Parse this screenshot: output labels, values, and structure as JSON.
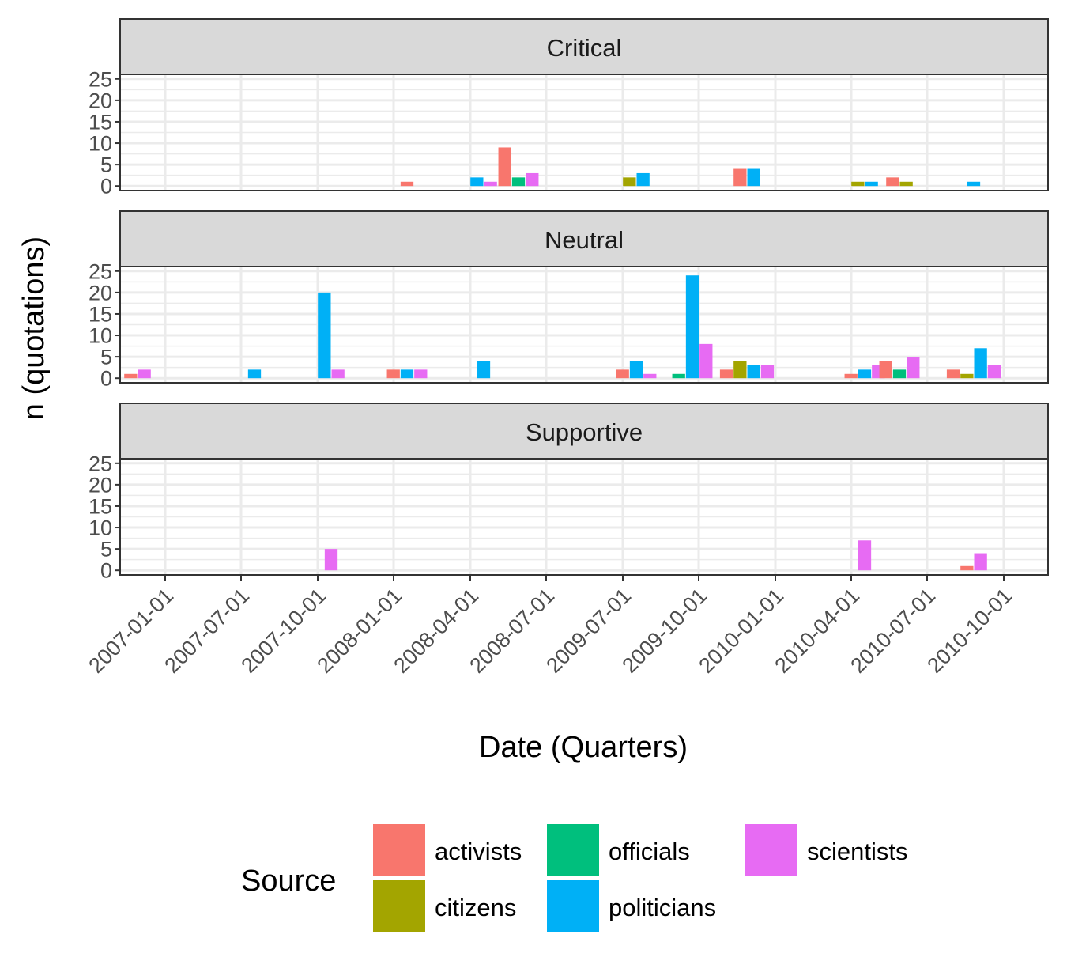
{
  "chart_data": {
    "type": "bar",
    "facet_by": "stance",
    "xlabel": "Date (Quarters)",
    "ylabel": "n (quotations)",
    "ylim": [
      0,
      25
    ],
    "yticks": [
      0,
      5,
      10,
      15,
      20,
      25
    ],
    "x_tick_labels": [
      "2007-01-01",
      "2007-07-01",
      "2007-10-01",
      "2008-01-01",
      "2008-04-01",
      "2008-07-01",
      "2009-07-01",
      "2009-10-01",
      "2010-01-01",
      "2010-04-01",
      "2010-07-01",
      "2010-10-01"
    ],
    "grid": true,
    "legend_position": "bottom",
    "legend": {
      "title": "Source",
      "entries": [
        {
          "name": "activists",
          "color": "#F8766D"
        },
        {
          "name": "citizens",
          "color": "#A3A500"
        },
        {
          "name": "officials",
          "color": "#00BF7D"
        },
        {
          "name": "politicians",
          "color": "#00B0F6"
        },
        {
          "name": "scientists",
          "color": "#E76BF3"
        }
      ]
    },
    "panels": [
      {
        "title": "Critical",
        "bars": [
          {
            "date": "2008-01-01",
            "source": "activists",
            "value": 1
          },
          {
            "date": "2008-04-01",
            "source": "politicians",
            "value": 2
          },
          {
            "date": "2008-04-01",
            "source": "scientists",
            "value": 1
          },
          {
            "date": "2008-07-01",
            "source": "activists",
            "value": 9
          },
          {
            "date": "2008-07-01",
            "source": "officials",
            "value": 2
          },
          {
            "date": "2008-07-01",
            "source": "scientists",
            "value": 3
          },
          {
            "date": "2009-07-01",
            "source": "citizens",
            "value": 2
          },
          {
            "date": "2009-07-01",
            "source": "politicians",
            "value": 3
          },
          {
            "date": "2010-01-01",
            "source": "activists",
            "value": 4
          },
          {
            "date": "2010-01-01",
            "source": "politicians",
            "value": 4
          },
          {
            "date": "2010-04-01",
            "source": "citizens",
            "value": 1
          },
          {
            "date": "2010-04-01",
            "source": "politicians",
            "value": 1
          },
          {
            "date": "2010-07-01",
            "source": "activists",
            "value": 2
          },
          {
            "date": "2010-07-01",
            "source": "citizens",
            "value": 1
          },
          {
            "date": "2010-10-01",
            "source": "politicians",
            "value": 1
          }
        ]
      },
      {
        "title": "Neutral",
        "bars": [
          {
            "date": "2007-01-01",
            "source": "activists",
            "value": 1
          },
          {
            "date": "2007-01-01",
            "source": "scientists",
            "value": 2
          },
          {
            "date": "2007-07-01",
            "source": "politicians",
            "value": 2
          },
          {
            "date": "2007-10-01",
            "source": "politicians",
            "value": 20
          },
          {
            "date": "2007-10-01",
            "source": "scientists",
            "value": 2
          },
          {
            "date": "2008-01-01",
            "source": "politicians",
            "value": 2
          },
          {
            "date": "2008-01-01",
            "source": "scientists",
            "value": 2
          },
          {
            "date": "2008-01-01",
            "source": "activists",
            "value": 2
          },
          {
            "date": "2008-04-01",
            "source": "politicians",
            "value": 4
          },
          {
            "date": "2009-07-01",
            "source": "politicians",
            "value": 4
          },
          {
            "date": "2009-07-01",
            "source": "scientists",
            "value": 1
          },
          {
            "date": "2009-07-01",
            "source": "activists",
            "value": 2
          },
          {
            "date": "2009-10-01",
            "source": "officials",
            "value": 1
          },
          {
            "date": "2009-10-01",
            "source": "politicians",
            "value": 24
          },
          {
            "date": "2009-10-01",
            "source": "scientists",
            "value": 8
          },
          {
            "date": "2010-01-01",
            "source": "activists",
            "value": 2
          },
          {
            "date": "2010-01-01",
            "source": "citizens",
            "value": 4
          },
          {
            "date": "2010-01-01",
            "source": "politicians",
            "value": 3
          },
          {
            "date": "2010-01-01",
            "source": "scientists",
            "value": 3
          },
          {
            "date": "2010-04-01",
            "source": "activists",
            "value": 1
          },
          {
            "date": "2010-04-01",
            "source": "politicians",
            "value": 2
          },
          {
            "date": "2010-04-01",
            "source": "scientists",
            "value": 3
          },
          {
            "date": "2010-07-01",
            "source": "activists",
            "value": 4
          },
          {
            "date": "2010-07-01",
            "source": "officials",
            "value": 2
          },
          {
            "date": "2010-07-01",
            "source": "scientists",
            "value": 5
          },
          {
            "date": "2010-10-01",
            "source": "activists",
            "value": 2
          },
          {
            "date": "2010-10-01",
            "source": "citizens",
            "value": 1
          },
          {
            "date": "2010-10-01",
            "source": "politicians",
            "value": 7
          },
          {
            "date": "2010-10-01",
            "source": "scientists",
            "value": 3
          }
        ]
      },
      {
        "title": "Supportive",
        "bars": [
          {
            "date": "2007-10-01",
            "source": "scientists",
            "value": 5
          },
          {
            "date": "2010-04-01",
            "source": "scientists",
            "value": 7
          },
          {
            "date": "2010-10-01",
            "source": "activists",
            "value": 1
          },
          {
            "date": "2010-10-01",
            "source": "scientists",
            "value": 4
          }
        ]
      }
    ]
  }
}
